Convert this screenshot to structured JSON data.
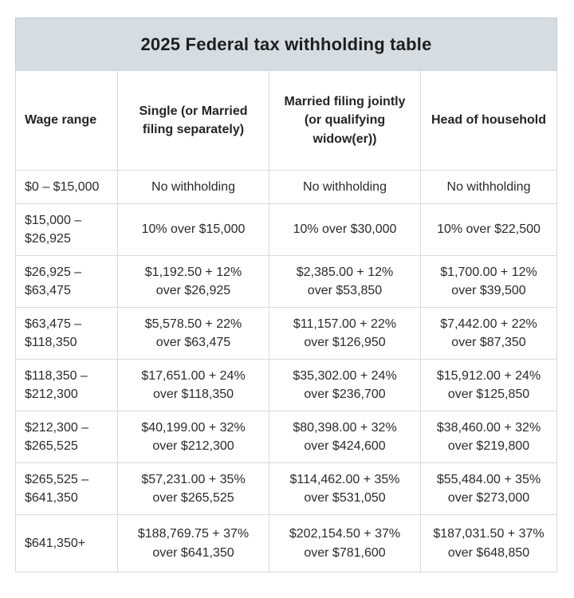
{
  "title": "2025 Federal tax withholding table",
  "colors": {
    "title_band_background": "#d5dde3",
    "table_background": "#ffffff",
    "outer_border": "#aeb5ba",
    "inner_border": "#d7dadc",
    "text": "#2a2a2a"
  },
  "chart_data": {
    "type": "table",
    "title": "2025 Federal tax withholding table",
    "columns": [
      "Wage range",
      "Single (or Married\nfiling separately)",
      "Married filing jointly\n(or qualifying\nwidow(er))",
      "Head of household"
    ],
    "rows": [
      [
        "$0 – $15,000",
        "No withholding",
        "No withholding",
        "No withholding"
      ],
      [
        "$15,000 –\n$26,925",
        "10% over $15,000",
        "10% over $30,000",
        "10% over $22,500"
      ],
      [
        "$26,925 –\n$63,475",
        "$1,192.50 + 12%\nover $26,925",
        "$2,385.00 + 12%\nover $53,850",
        "$1,700.00 + 12%\nover $39,500"
      ],
      [
        "$63,475 –\n$118,350",
        "$5,578.50 + 22%\nover $63,475",
        "$11,157.00 + 22%\nover $126,950",
        "$7,442.00 + 22%\nover $87,350"
      ],
      [
        "$118,350 –\n$212,300",
        "$17,651.00 + 24%\nover $118,350",
        "$35,302.00 + 24%\nover $236,700",
        "$15,912.00 + 24%\nover $125,850"
      ],
      [
        "$212,300 –\n$265,525",
        "$40,199.00 + 32%\nover $212,300",
        "$80,398.00 + 32%\nover $424,600",
        "$38,460.00 + 32%\nover $219,800"
      ],
      [
        "$265,525 –\n$641,350",
        "$57,231.00 + 35%\nover $265,525",
        "$114,462.00 + 35%\nover $531,050",
        "$55,484.00 + 35%\nover $273,000"
      ],
      [
        "$641,350+",
        "$188,769.75 + 37%\nover $641,350",
        "$202,154.50 + 37%\nover $781,600",
        "$187,031.50 + 37%\nover $648,850"
      ]
    ]
  }
}
